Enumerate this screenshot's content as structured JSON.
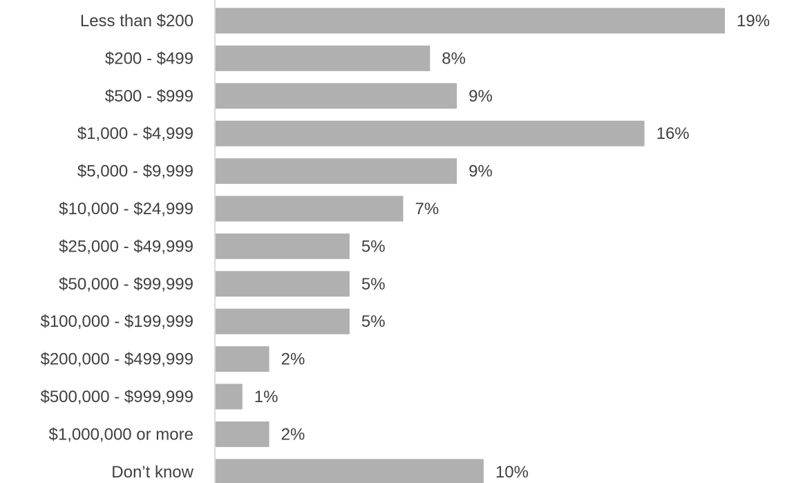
{
  "chart_data": {
    "type": "bar",
    "orientation": "horizontal",
    "categories": [
      "Less than $200",
      "$200 - $499",
      "$500 - $999",
      "$1,000 - $4,999",
      "$5,000 - $9,999",
      "$10,000 - $24,999",
      "$25,000 - $49,999",
      "$50,000 - $99,999",
      "$100,000 - $199,999",
      "$200,000 - $499,999",
      "$500,000 - $999,999",
      "$1,000,000 or more",
      "Don’t know"
    ],
    "values": [
      19,
      8,
      9,
      16,
      9,
      7,
      5,
      5,
      5,
      2,
      1,
      2,
      10
    ],
    "value_labels": [
      "19%",
      "8%",
      "9%",
      "16%",
      "9%",
      "7%",
      "5%",
      "5%",
      "5%",
      "2%",
      "1%",
      "2%",
      "10%"
    ],
    "unit": "%",
    "xlim": [
      0,
      19
    ],
    "title": "",
    "xlabel": "",
    "ylabel": "",
    "grid": false,
    "legend": "none",
    "colors": {
      "bar": "#b0b0b0",
      "axis": "#d9d9d9",
      "text": "#404040"
    }
  }
}
